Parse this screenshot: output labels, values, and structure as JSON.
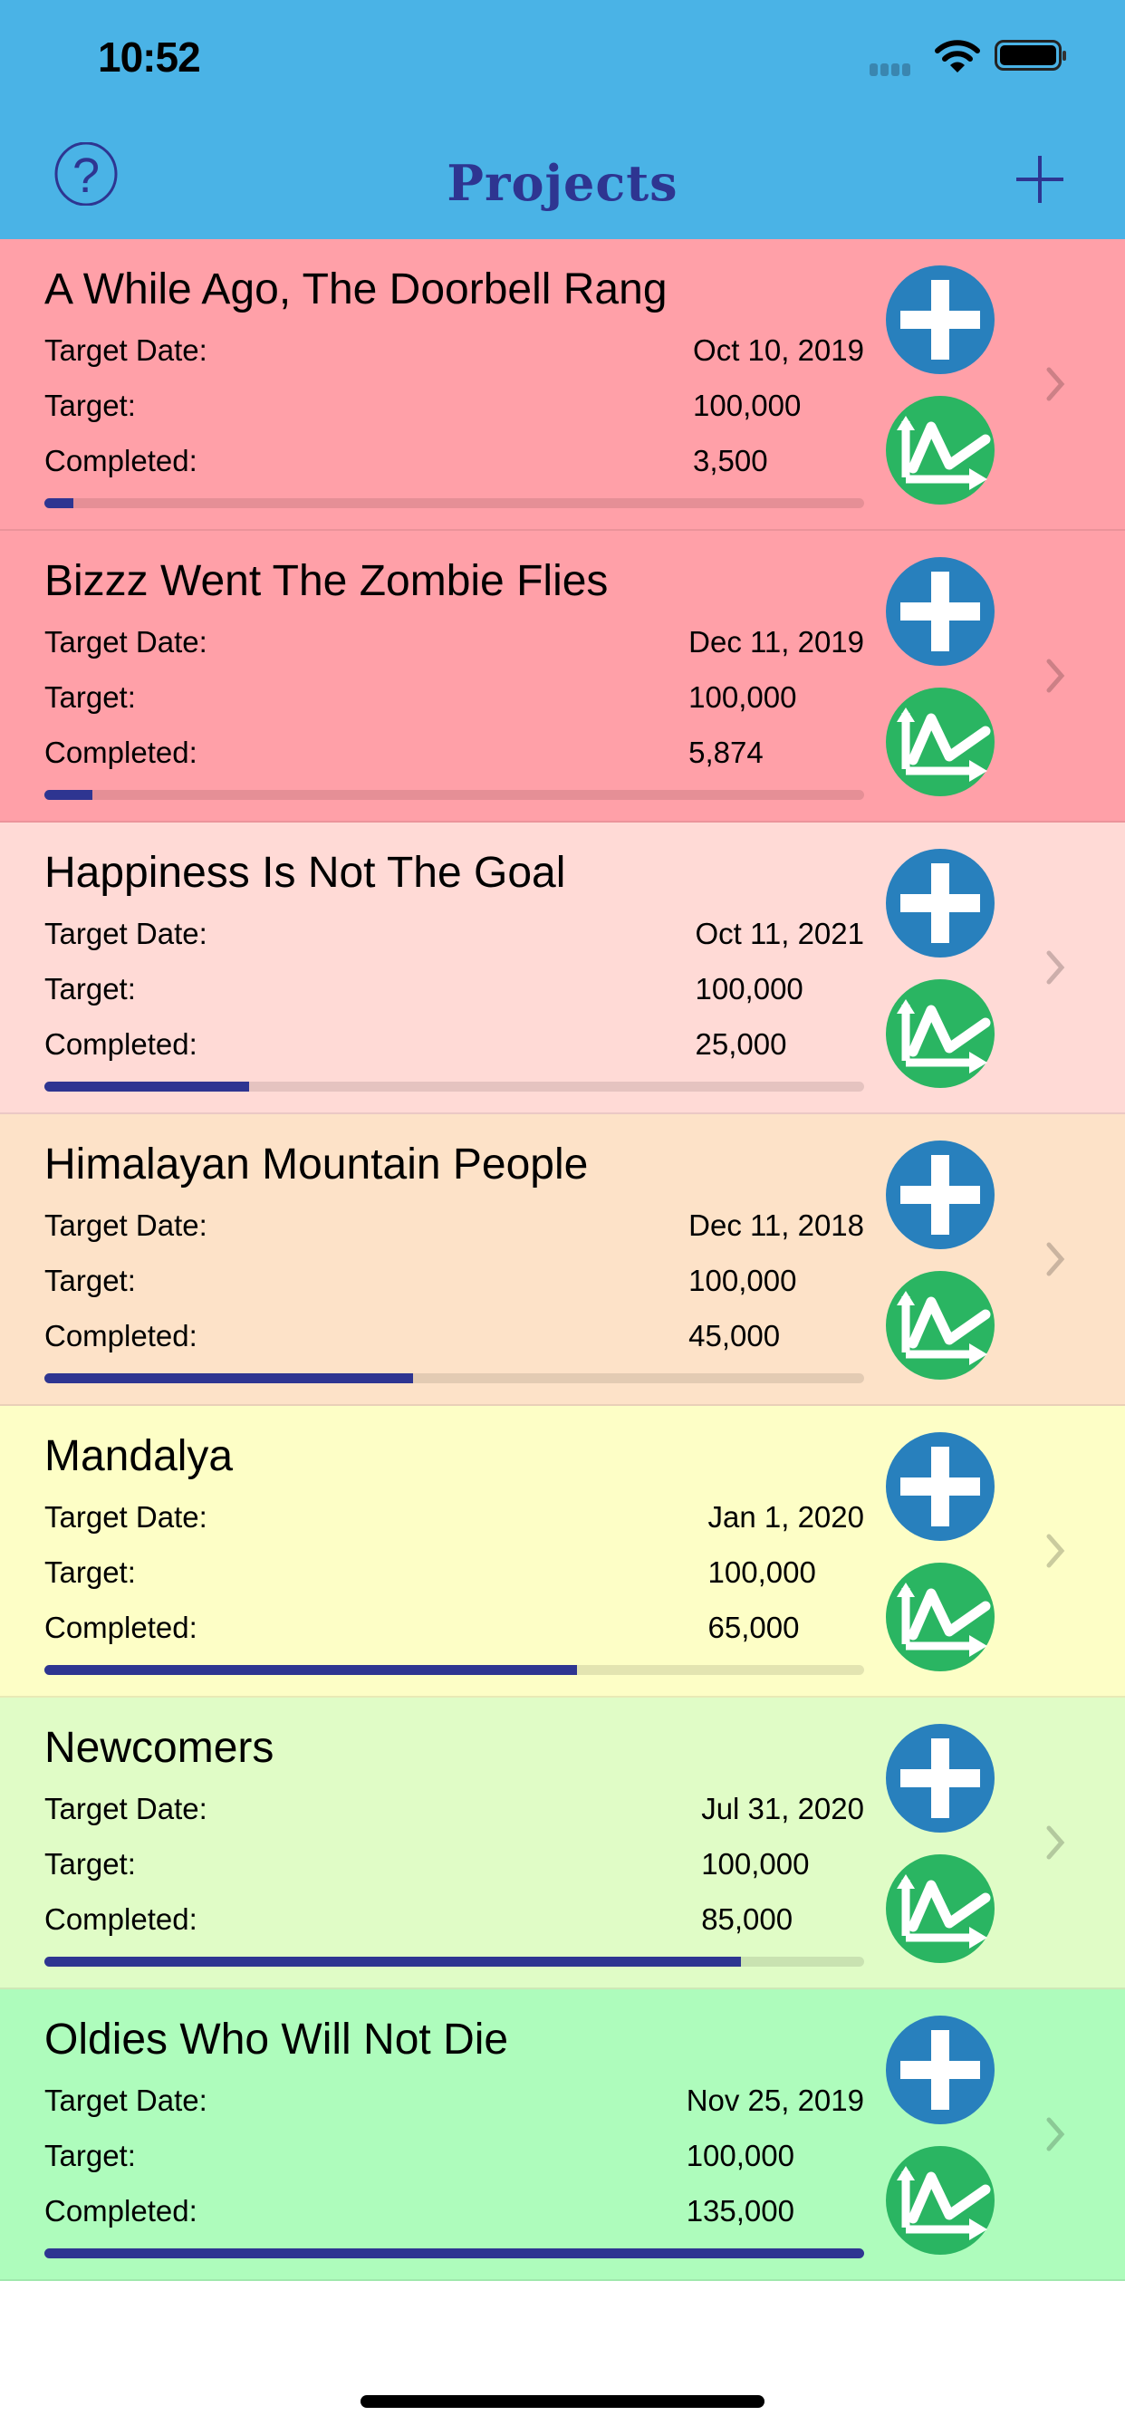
{
  "status_bar": {
    "time": "10:52"
  },
  "nav": {
    "title": "Projects",
    "help_icon": "question-circle-icon",
    "add_icon": "plus-icon"
  },
  "labels": {
    "target_date": "Target Date:",
    "target": "Target:",
    "completed": "Completed:"
  },
  "colors": {
    "header": "#4ab3e6",
    "accent": "#2e3591",
    "add_circle": "#2880bd",
    "chart_circle": "#2ab562"
  },
  "projects": [
    {
      "title": "A While Ago, The Doorbell Rang",
      "target_date": "Oct 10, 2019",
      "target": "100,000",
      "completed": "3,500",
      "progress": 0.035,
      "color": "#ffa0a8"
    },
    {
      "title": "Bizzz Went The Zombie Flies",
      "target_date": "Dec 11, 2019",
      "target": "100,000",
      "completed": "5,874",
      "progress": 0.05874,
      "color": "#ffa0a8"
    },
    {
      "title": "Happiness Is Not The Goal",
      "target_date": "Oct 11, 2021",
      "target": "100,000",
      "completed": "25,000",
      "progress": 0.25,
      "color": "#ffdad6"
    },
    {
      "title": "Himalayan Mountain People",
      "target_date": "Dec 11, 2018",
      "target": "100,000",
      "completed": "45,000",
      "progress": 0.45,
      "color": "#fde2c8"
    },
    {
      "title": "Mandalya",
      "target_date": "Jan 1, 2020",
      "target": "100,000",
      "completed": "65,000",
      "progress": 0.65,
      "color": "#fdfec6"
    },
    {
      "title": "Newcomers",
      "target_date": "Jul 31, 2020",
      "target": "100,000",
      "completed": "85,000",
      "progress": 0.85,
      "color": "#e0fcc6"
    },
    {
      "title": "Oldies Who Will Not Die",
      "target_date": "Nov 25, 2019",
      "target": "100,000",
      "completed": "135,000",
      "progress": 1.0,
      "color": "#aefcbc"
    }
  ]
}
